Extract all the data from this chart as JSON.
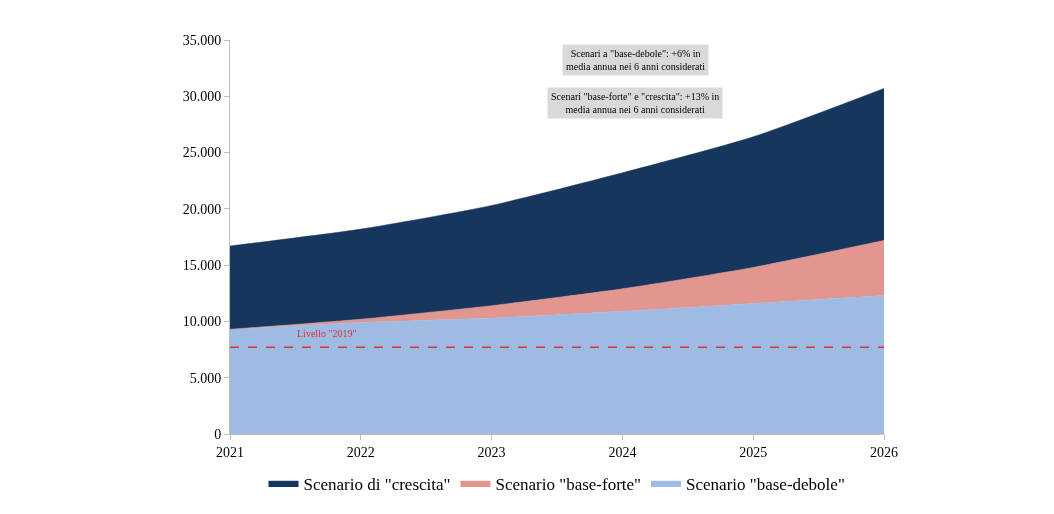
{
  "chart_data": {
    "type": "area",
    "stacked": true,
    "x": [
      2021,
      2022,
      2023,
      2024,
      2025,
      2026
    ],
    "series": [
      {
        "name": "Scenario \"base-debole\"",
        "color": "#9dbbe3",
        "values": [
          9300,
          9900,
          10300,
          10900,
          11600,
          12300
        ]
      },
      {
        "name": "Scenario \"base-forte\"",
        "color": "#e2968f",
        "values": [
          0,
          300,
          1100,
          2000,
          3200,
          4900
        ]
      },
      {
        "name": "Scenario di \"crescita\"",
        "color": "#17365d",
        "values": [
          7400,
          8000,
          8900,
          10300,
          11600,
          13500
        ]
      }
    ],
    "xlim": [
      2021,
      2026
    ],
    "xticks": [
      2021,
      2022,
      2023,
      2024,
      2025,
      2026
    ],
    "ylim": [
      0,
      35000
    ],
    "yticks": [
      {
        "value": 0,
        "label": "0"
      },
      {
        "value": 5000,
        "label": "5.000"
      },
      {
        "value": 10000,
        "label": "10.000"
      },
      {
        "value": 15000,
        "label": "15.000"
      },
      {
        "value": 20000,
        "label": "20.000"
      },
      {
        "value": 25000,
        "label": "25.000"
      },
      {
        "value": 30000,
        "label": "30.000"
      },
      {
        "value": 35000,
        "label": "35.000"
      }
    ],
    "ref_lines": [
      {
        "axis": "y",
        "value": 7700,
        "label": "Livello \"2019\"",
        "color": "#e0303a",
        "line_style": "dashed"
      }
    ],
    "annotations": [
      "Scenari a \"base-debole\": +6% in media annua nei 6 anni considerati",
      "Scenari \"base-forte\" e \"crescita\": +13% in media annua nei 6 anni considerati"
    ],
    "legend": "bottom"
  }
}
